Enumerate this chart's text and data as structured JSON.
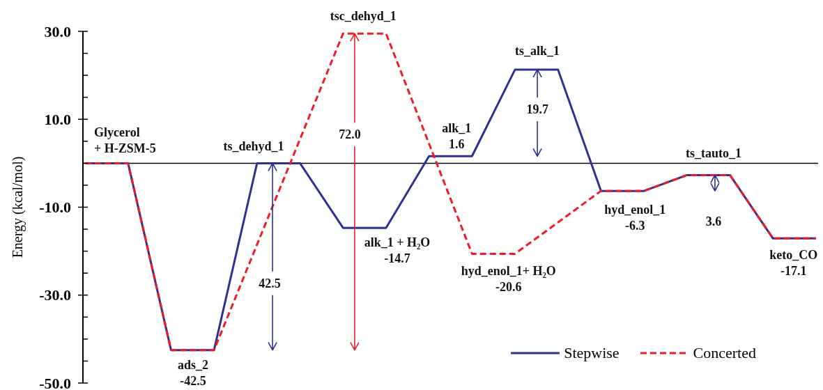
{
  "chart_data": {
    "type": "line",
    "ylabel": "Energy (kcal/mol)",
    "categories": [
      null,
      null,
      null,
      null,
      null,
      null,
      null,
      null,
      null,
      null,
      null,
      null,
      null,
      null,
      null,
      null,
      null,
      null
    ],
    "ylim": [
      -50,
      30
    ],
    "yticks": [
      {
        "value": -50,
        "label": "-50.0"
      },
      {
        "value": -45,
        "label": null
      },
      {
        "value": -40,
        "label": null
      },
      {
        "value": -35,
        "label": null
      },
      {
        "value": -30,
        "label": "-30.0"
      },
      {
        "value": -25,
        "label": null
      },
      {
        "value": -20,
        "label": null
      },
      {
        "value": -15,
        "label": null
      },
      {
        "value": -10,
        "label": "-10.0"
      },
      {
        "value": -5,
        "label": null
      },
      {
        "value": 0,
        "label": null
      },
      {
        "value": 5,
        "label": null
      },
      {
        "value": 10,
        "label": "10.0"
      },
      {
        "value": 15,
        "label": null
      },
      {
        "value": 20,
        "label": null
      },
      {
        "value": 25,
        "label": null
      },
      {
        "value": 30,
        "label": "30.0"
      }
    ],
    "tick_labels": "y",
    "legend": "bottom right",
    "ref_lines": [
      {
        "axis": "y",
        "value": 0,
        "color": "#000000"
      }
    ],
    "series": [
      {
        "name": "Stepwise",
        "color": "#2e3192",
        "line_style": "solid",
        "values": [
          0,
          0,
          -42.5,
          -42.5,
          0,
          0,
          -14.7,
          -14.7,
          1.6,
          1.6,
          21.3,
          21.3,
          -6.3,
          -6.3,
          -2.7,
          -2.7,
          -17.1,
          -17.1
        ]
      },
      {
        "name": "Concerted",
        "color": "#ee1c25",
        "line_style": "dashed",
        "values": [
          0,
          0,
          -42.5,
          -42.5,
          null,
          null,
          29.5,
          29.5,
          null,
          -20.6,
          -20.6,
          null,
          -6.3,
          -6.3,
          -2.7,
          -2.7,
          -17.1,
          -17.1
        ]
      }
    ],
    "annotations": [
      {
        "text": "Glycerol\n+ H-ZSM-5",
        "y": 0
      },
      {
        "text": "ads_2\n-42.5",
        "y": -42.5
      },
      {
        "text": "ts_dehyd_1",
        "y": 0
      },
      "42.5",
      {
        "text": "tsc_dehyd_1",
        "y": 29.5
      },
      "72.0",
      "alk_1 + H₂O\n-14.7",
      {
        "text": "alk_1\n1.6",
        "y": 1.6
      },
      {
        "text": "hyd_enol_1+ H₂O\n-20.6",
        "y": -20.6
      },
      {
        "text": "ts_alk_1",
        "y": 21.3
      },
      "19.7",
      {
        "text": "hyd_enol_1\n-6.3",
        "y": -6.3
      },
      {
        "text": "ts_tauto_1",
        "y": -2.7
      },
      "3.6",
      {
        "text": "keto_CO\n-17.1",
        "y": -17.1
      }
    ]
  }
}
